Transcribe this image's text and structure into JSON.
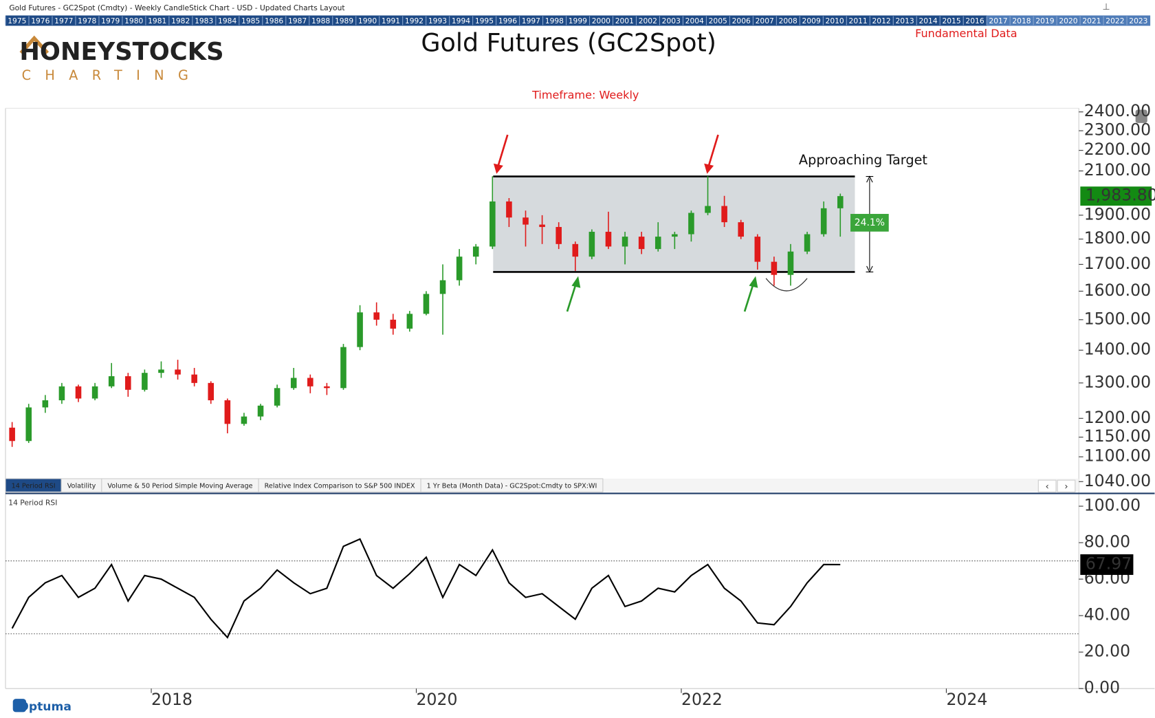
{
  "page": {
    "window_title": "Gold Futures - GC2Spot (Cmdty) - Weekly CandleStick Chart - USD - Updated Charts Layout",
    "year_strip": [
      "1975",
      "1976",
      "1977",
      "1978",
      "1979",
      "1980",
      "1981",
      "1982",
      "1983",
      "1984",
      "1985",
      "1986",
      "1987",
      "1988",
      "1989",
      "1990",
      "1991",
      "1992",
      "1993",
      "1994",
      "1995",
      "1996",
      "1997",
      "1998",
      "1999",
      "2000",
      "2001",
      "2002",
      "2003",
      "2004",
      "2005",
      "2006",
      "2007",
      "2008",
      "2009",
      "2010",
      "2011",
      "2012",
      "2013",
      "2014",
      "2015",
      "2016",
      "2017",
      "2018",
      "2019",
      "2020",
      "2021",
      "2022",
      "2023"
    ],
    "logo_top": "HONEYSTOCKS",
    "logo_bottom": "CHARTING",
    "fundamental_link": "Fundamental Data",
    "tabs": [
      "14 Period RSI",
      "Volatility",
      "Volume & 50 Period Simple Moving Average",
      "Relative Index Comparison to S&P 500 INDEX",
      "1 Yr Beta (Month Data) - GC2Spot:Cmdty to SPX:WI"
    ],
    "footer_brand": "Optuma"
  },
  "chart_data": [
    {
      "type": "candlestick",
      "title": "Gold Futures (GC2Spot)",
      "subtitle": "Timeframe: Weekly",
      "annotation": "Approaching Target",
      "x": [
        2016.95,
        2017.075,
        2017.2,
        2017.325,
        2017.45,
        2017.575,
        2017.7,
        2017.825,
        2017.95,
        2018.075,
        2018.2,
        2018.325,
        2018.45,
        2018.575,
        2018.7,
        2018.825,
        2018.95,
        2019.075,
        2019.2,
        2019.325,
        2019.45,
        2019.575,
        2019.7,
        2019.825,
        2019.95,
        2020.075,
        2020.2,
        2020.325,
        2020.45,
        2020.575,
        2020.7,
        2020.825,
        2020.95,
        2021.075,
        2021.2,
        2021.325,
        2021.45,
        2021.575,
        2021.7,
        2021.825,
        2021.95,
        2022.075,
        2022.2,
        2022.325,
        2022.45,
        2022.575,
        2022.7,
        2022.825,
        2022.95,
        2023.075,
        2023.2
      ],
      "open": [
        1175,
        1140,
        1230,
        1250,
        1290,
        1255,
        1290,
        1320,
        1280,
        1330,
        1340,
        1325,
        1300,
        1250,
        1185,
        1205,
        1235,
        1285,
        1315,
        1290,
        1285,
        1410,
        1525,
        1500,
        1470,
        1520,
        1590,
        1640,
        1730,
        1770,
        1960,
        1890,
        1860,
        1850,
        1780,
        1730,
        1830,
        1770,
        1810,
        1760,
        1810,
        1820,
        1910,
        1940,
        1870,
        1810,
        1710,
        1660,
        1750,
        1820,
        1930
      ],
      "high": [
        1190,
        1240,
        1265,
        1300,
        1295,
        1300,
        1360,
        1330,
        1340,
        1365,
        1370,
        1345,
        1305,
        1255,
        1215,
        1240,
        1295,
        1345,
        1325,
        1300,
        1420,
        1550,
        1560,
        1520,
        1530,
        1600,
        1700,
        1760,
        1780,
        2075,
        1975,
        1920,
        1900,
        1870,
        1790,
        1840,
        1915,
        1830,
        1830,
        1870,
        1830,
        1920,
        2075,
        1985,
        1880,
        1820,
        1730,
        1780,
        1830,
        1960,
        1995
      ],
      "low": [
        1125,
        1135,
        1215,
        1240,
        1245,
        1250,
        1285,
        1260,
        1275,
        1315,
        1310,
        1290,
        1240,
        1160,
        1180,
        1195,
        1230,
        1280,
        1270,
        1265,
        1280,
        1400,
        1480,
        1450,
        1460,
        1515,
        1450,
        1620,
        1700,
        1760,
        1850,
        1770,
        1780,
        1760,
        1675,
        1720,
        1760,
        1700,
        1740,
        1750,
        1760,
        1790,
        1900,
        1850,
        1800,
        1680,
        1620,
        1620,
        1740,
        1810,
        1810
      ],
      "close": [
        1140,
        1230,
        1250,
        1290,
        1255,
        1290,
        1320,
        1280,
        1330,
        1340,
        1325,
        1300,
        1250,
        1185,
        1205,
        1235,
        1285,
        1315,
        1290,
        1285,
        1410,
        1525,
        1500,
        1470,
        1520,
        1590,
        1640,
        1730,
        1770,
        1960,
        1890,
        1860,
        1850,
        1780,
        1730,
        1830,
        1770,
        1810,
        1760,
        1810,
        1820,
        1910,
        1940,
        1870,
        1810,
        1710,
        1660,
        1750,
        1820,
        1930,
        1983.8
      ],
      "up_color": "#2a9a2a",
      "down_color": "#e01b1b",
      "xlim": [
        2016.9,
        2025.0
      ],
      "ylim": [
        1016,
        2420
      ],
      "log_scale": true,
      "yticks": [
        {
          "value": 2400,
          "label": "2400.00"
        },
        {
          "value": 2300,
          "label": "2300.00"
        },
        {
          "value": 2200,
          "label": "2200.00"
        },
        {
          "value": 2100,
          "label": "2100.00"
        },
        {
          "value": 1900,
          "label": "1900.00"
        },
        {
          "value": 1800,
          "label": "1800.00"
        },
        {
          "value": 1700,
          "label": "1700.00"
        },
        {
          "value": 1600,
          "label": "1600.00"
        },
        {
          "value": 1500,
          "label": "1500.00"
        },
        {
          "value": 1400,
          "label": "1400.00"
        },
        {
          "value": 1300,
          "label": "1300.00"
        },
        {
          "value": 1200,
          "label": "1200.00"
        },
        {
          "value": 1150,
          "label": "1150.00"
        },
        {
          "value": 1100,
          "label": "1100.00"
        },
        {
          "value": 1040,
          "label": "1040.00"
        }
      ],
      "range_box": {
        "x": [
          2020.58,
          2023.31
        ],
        "y": [
          1671,
          2074
        ],
        "label": "24.1%"
      },
      "last_price": {
        "value": 1983.8,
        "label": "1,983.80"
      }
    },
    {
      "type": "line",
      "title": "14 Period RSI",
      "x": [
        2016.95,
        2017.075,
        2017.2,
        2017.325,
        2017.45,
        2017.575,
        2017.7,
        2017.825,
        2017.95,
        2018.075,
        2018.2,
        2018.325,
        2018.45,
        2018.575,
        2018.7,
        2018.825,
        2018.95,
        2019.075,
        2019.2,
        2019.325,
        2019.45,
        2019.575,
        2019.7,
        2019.825,
        2019.95,
        2020.075,
        2020.2,
        2020.325,
        2020.45,
        2020.575,
        2020.7,
        2020.825,
        2020.95,
        2021.075,
        2021.2,
        2021.325,
        2021.45,
        2021.575,
        2021.7,
        2021.825,
        2021.95,
        2022.075,
        2022.2,
        2022.325,
        2022.45,
        2022.575,
        2022.7,
        2022.825,
        2022.95,
        2023.075,
        2023.2
      ],
      "values": [
        33,
        50,
        58,
        62,
        50,
        55,
        68,
        48,
        62,
        60,
        55,
        50,
        38,
        28,
        48,
        55,
        65,
        58,
        52,
        55,
        78,
        82,
        62,
        55,
        63,
        72,
        50,
        68,
        62,
        76,
        58,
        50,
        52,
        45,
        38,
        55,
        62,
        45,
        48,
        55,
        53,
        62,
        68,
        55,
        48,
        36,
        35,
        45,
        58,
        68,
        67.97
      ],
      "color": "#000000",
      "xlim": [
        2016.9,
        2025.0
      ],
      "xticks": [
        2018,
        2020,
        2022,
        2024
      ],
      "ylim": [
        0,
        105
      ],
      "yticks": [
        {
          "value": 0,
          "label": "0.00"
        },
        {
          "value": 20,
          "label": "20.00"
        },
        {
          "value": 40,
          "label": "40.00"
        },
        {
          "value": 60,
          "label": "60.00"
        },
        {
          "value": 80,
          "label": "80.00"
        },
        {
          "value": 100,
          "label": "100.00"
        }
      ],
      "reference_lines": [
        70,
        30
      ],
      "last_value": 67.97
    }
  ]
}
